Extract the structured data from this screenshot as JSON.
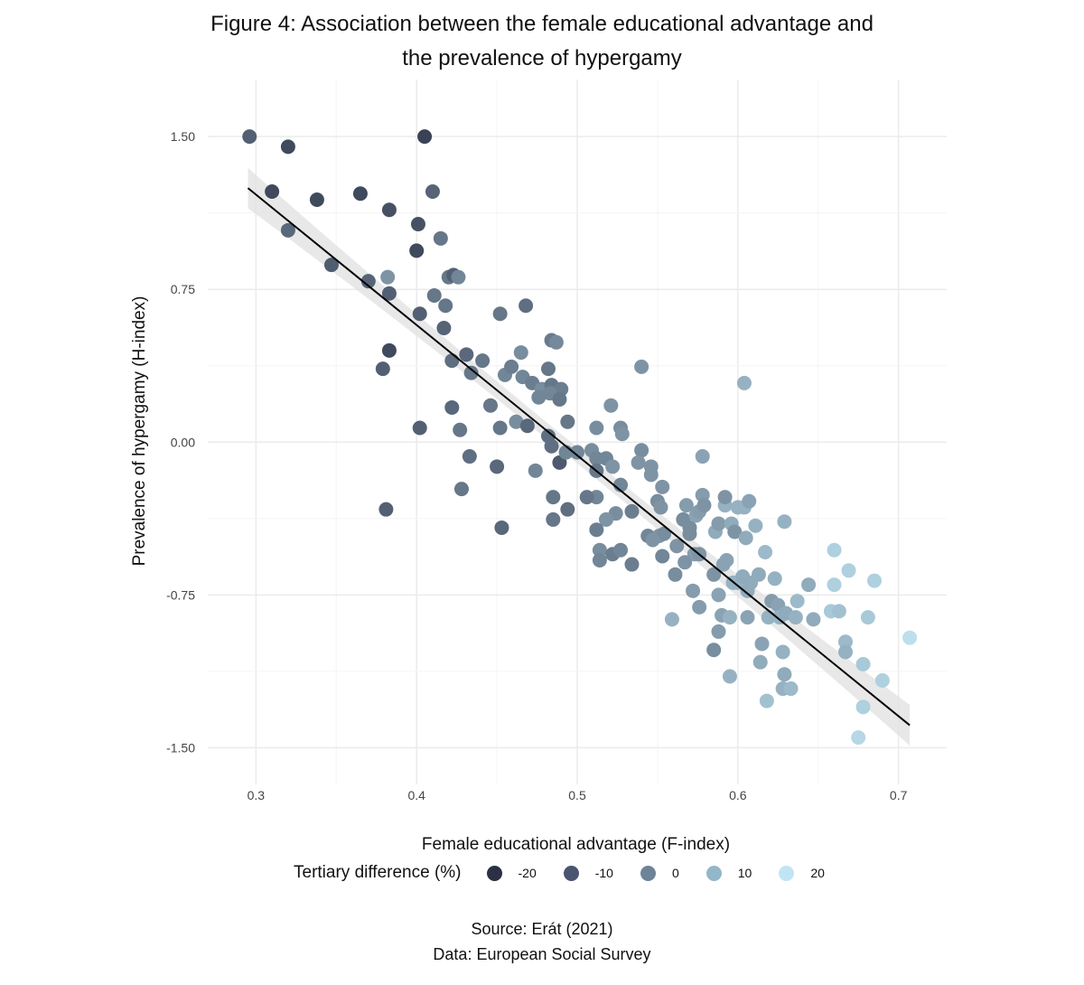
{
  "title_lines": [
    "Figure 4: Association between the female educational advantage and",
    "the prevalence of hypergamy"
  ],
  "caption": {
    "source": "Source: Erát (2021)",
    "data": "Data: European Social Survey"
  },
  "chart_data": {
    "type": "scatter",
    "xlabel": "Female educational advantage (F-index)",
    "ylabel": "Prevalence of hypergamy (H-index)",
    "xlim": [
      0.27,
      0.73
    ],
    "ylim": [
      -1.68,
      1.78
    ],
    "x_ticks": [
      0.3,
      0.4,
      0.5,
      0.6,
      0.7
    ],
    "x_tick_labels": [
      "0.3",
      "0.4",
      "0.5",
      "0.6",
      "0.7"
    ],
    "y_ticks": [
      1.5,
      0.75,
      0.0,
      -0.75,
      -1.5
    ],
    "y_tick_labels": [
      "1.50",
      "0.75",
      "0.00",
      "-0.75",
      "-1.50"
    ],
    "grid": true,
    "legend": {
      "title": "Tertiary difference (%)",
      "position": "bottom",
      "items": [
        {
          "label": "-20",
          "color": "#2b3044"
        },
        {
          "label": "-10",
          "color": "#4a556f"
        },
        {
          "label": "0",
          "color": "#6e8398"
        },
        {
          "label": "10",
          "color": "#94b6c9"
        },
        {
          "label": "20",
          "color": "#bfe5f5"
        }
      ]
    },
    "color_scale": {
      "min": -25,
      "max": 25,
      "low": "#2b3044",
      "high": "#c4eaf8"
    },
    "fit": {
      "method": "linear",
      "slope": -6.4,
      "intercept": 3.135,
      "x_range": [
        0.295,
        0.707
      ],
      "ci_halfwidth_end": 0.1,
      "ci_halfwidth_center": 0.04,
      "x_center": 0.5,
      "line_color": "#000000",
      "band_color": "#e0e0e0"
    },
    "points": [
      {
        "x": 0.296,
        "y": 1.5,
        "t": -12
      },
      {
        "x": 0.32,
        "y": 1.45,
        "t": -18
      },
      {
        "x": 0.405,
        "y": 1.5,
        "t": -20
      },
      {
        "x": 0.31,
        "y": 1.23,
        "t": -18
      },
      {
        "x": 0.338,
        "y": 1.19,
        "t": -18
      },
      {
        "x": 0.365,
        "y": 1.22,
        "t": -18
      },
      {
        "x": 0.41,
        "y": 1.23,
        "t": -11
      },
      {
        "x": 0.383,
        "y": 1.14,
        "t": -16
      },
      {
        "x": 0.32,
        "y": 1.04,
        "t": -10
      },
      {
        "x": 0.401,
        "y": 1.07,
        "t": -16
      },
      {
        "x": 0.4,
        "y": 0.94,
        "t": -18
      },
      {
        "x": 0.415,
        "y": 1.0,
        "t": -6
      },
      {
        "x": 0.347,
        "y": 0.87,
        "t": -13
      },
      {
        "x": 0.37,
        "y": 0.79,
        "t": -11
      },
      {
        "x": 0.382,
        "y": 0.81,
        "t": 2
      },
      {
        "x": 0.383,
        "y": 0.73,
        "t": -12
      },
      {
        "x": 0.42,
        "y": 0.81,
        "t": -6
      },
      {
        "x": 0.423,
        "y": 0.82,
        "t": -12
      },
      {
        "x": 0.426,
        "y": 0.81,
        "t": -2
      },
      {
        "x": 0.411,
        "y": 0.72,
        "t": -6
      },
      {
        "x": 0.418,
        "y": 0.67,
        "t": -6
      },
      {
        "x": 0.402,
        "y": 0.63,
        "t": -12
      },
      {
        "x": 0.417,
        "y": 0.56,
        "t": -11
      },
      {
        "x": 0.452,
        "y": 0.63,
        "t": -6
      },
      {
        "x": 0.468,
        "y": 0.67,
        "t": -8
      },
      {
        "x": 0.383,
        "y": 0.45,
        "t": -18
      },
      {
        "x": 0.379,
        "y": 0.36,
        "t": -12
      },
      {
        "x": 0.422,
        "y": 0.4,
        "t": -8
      },
      {
        "x": 0.431,
        "y": 0.43,
        "t": -10
      },
      {
        "x": 0.441,
        "y": 0.4,
        "t": -6
      },
      {
        "x": 0.434,
        "y": 0.34,
        "t": -6
      },
      {
        "x": 0.455,
        "y": 0.33,
        "t": -2
      },
      {
        "x": 0.459,
        "y": 0.37,
        "t": -4
      },
      {
        "x": 0.465,
        "y": 0.44,
        "t": 0
      },
      {
        "x": 0.482,
        "y": 0.36,
        "t": -6
      },
      {
        "x": 0.484,
        "y": 0.5,
        "t": -5
      },
      {
        "x": 0.487,
        "y": 0.49,
        "t": -1
      },
      {
        "x": 0.466,
        "y": 0.32,
        "t": -2
      },
      {
        "x": 0.472,
        "y": 0.29,
        "t": -4
      },
      {
        "x": 0.478,
        "y": 0.26,
        "t": 0
      },
      {
        "x": 0.484,
        "y": 0.28,
        "t": -6
      },
      {
        "x": 0.49,
        "y": 0.26,
        "t": -4
      },
      {
        "x": 0.476,
        "y": 0.22,
        "t": -2
      },
      {
        "x": 0.483,
        "y": 0.24,
        "t": -2
      },
      {
        "x": 0.489,
        "y": 0.21,
        "t": -6
      },
      {
        "x": 0.422,
        "y": 0.17,
        "t": -10
      },
      {
        "x": 0.446,
        "y": 0.18,
        "t": -6
      },
      {
        "x": 0.462,
        "y": 0.1,
        "t": 0
      },
      {
        "x": 0.469,
        "y": 0.08,
        "t": -10
      },
      {
        "x": 0.452,
        "y": 0.07,
        "t": -6
      },
      {
        "x": 0.402,
        "y": 0.07,
        "t": -12
      },
      {
        "x": 0.427,
        "y": 0.06,
        "t": -6
      },
      {
        "x": 0.54,
        "y": 0.37,
        "t": 2
      },
      {
        "x": 0.604,
        "y": 0.29,
        "t": 10
      },
      {
        "x": 0.494,
        "y": 0.1,
        "t": -6
      },
      {
        "x": 0.482,
        "y": 0.03,
        "t": -8
      },
      {
        "x": 0.484,
        "y": -0.02,
        "t": -8
      },
      {
        "x": 0.489,
        "y": -0.1,
        "t": -14
      },
      {
        "x": 0.493,
        "y": -0.05,
        "t": -2
      },
      {
        "x": 0.5,
        "y": -0.05,
        "t": -2
      },
      {
        "x": 0.509,
        "y": -0.04,
        "t": 0
      },
      {
        "x": 0.512,
        "y": -0.08,
        "t": -2
      },
      {
        "x": 0.518,
        "y": -0.08,
        "t": -2
      },
      {
        "x": 0.522,
        "y": -0.12,
        "t": 2
      },
      {
        "x": 0.512,
        "y": 0.07,
        "t": 0
      },
      {
        "x": 0.521,
        "y": 0.18,
        "t": 2
      },
      {
        "x": 0.527,
        "y": 0.07,
        "t": 0
      },
      {
        "x": 0.528,
        "y": 0.04,
        "t": 2
      },
      {
        "x": 0.54,
        "y": -0.04,
        "t": 0
      },
      {
        "x": 0.538,
        "y": -0.1,
        "t": 2
      },
      {
        "x": 0.546,
        "y": -0.12,
        "t": 2
      },
      {
        "x": 0.433,
        "y": -0.07,
        "t": -8
      },
      {
        "x": 0.45,
        "y": -0.12,
        "t": -10
      },
      {
        "x": 0.474,
        "y": -0.14,
        "t": -2
      },
      {
        "x": 0.428,
        "y": -0.23,
        "t": -6
      },
      {
        "x": 0.485,
        "y": -0.27,
        "t": -6
      },
      {
        "x": 0.494,
        "y": -0.33,
        "t": -8
      },
      {
        "x": 0.485,
        "y": -0.38,
        "t": -6
      },
      {
        "x": 0.381,
        "y": -0.33,
        "t": -12
      },
      {
        "x": 0.453,
        "y": -0.42,
        "t": -10
      },
      {
        "x": 0.512,
        "y": -0.14,
        "t": -6
      },
      {
        "x": 0.512,
        "y": -0.27,
        "t": -2
      },
      {
        "x": 0.506,
        "y": -0.27,
        "t": -6
      },
      {
        "x": 0.527,
        "y": -0.21,
        "t": -2
      },
      {
        "x": 0.524,
        "y": -0.35,
        "t": 0
      },
      {
        "x": 0.518,
        "y": -0.38,
        "t": 2
      },
      {
        "x": 0.512,
        "y": -0.43,
        "t": -4
      },
      {
        "x": 0.534,
        "y": -0.34,
        "t": -4
      },
      {
        "x": 0.546,
        "y": -0.16,
        "t": 2
      },
      {
        "x": 0.553,
        "y": -0.22,
        "t": 2
      },
      {
        "x": 0.55,
        "y": -0.29,
        "t": 0
      },
      {
        "x": 0.552,
        "y": -0.32,
        "t": 2
      },
      {
        "x": 0.544,
        "y": -0.46,
        "t": -2
      },
      {
        "x": 0.551,
        "y": -0.46,
        "t": 2
      },
      {
        "x": 0.554,
        "y": -0.45,
        "t": 0
      },
      {
        "x": 0.547,
        "y": -0.48,
        "t": 2
      },
      {
        "x": 0.514,
        "y": -0.53,
        "t": 0
      },
      {
        "x": 0.522,
        "y": -0.55,
        "t": -4
      },
      {
        "x": 0.527,
        "y": -0.53,
        "t": -2
      },
      {
        "x": 0.514,
        "y": -0.58,
        "t": -2
      },
      {
        "x": 0.534,
        "y": -0.6,
        "t": -4
      },
      {
        "x": 0.553,
        "y": -0.56,
        "t": -2
      },
      {
        "x": 0.562,
        "y": -0.51,
        "t": 2
      },
      {
        "x": 0.566,
        "y": -0.38,
        "t": 0
      },
      {
        "x": 0.57,
        "y": -0.42,
        "t": 0
      },
      {
        "x": 0.568,
        "y": -0.31,
        "t": 4
      },
      {
        "x": 0.574,
        "y": -0.36,
        "t": 6
      },
      {
        "x": 0.576,
        "y": -0.34,
        "t": 4
      },
      {
        "x": 0.578,
        "y": -0.26,
        "t": 4
      },
      {
        "x": 0.579,
        "y": -0.31,
        "t": 2
      },
      {
        "x": 0.586,
        "y": -0.44,
        "t": 8
      },
      {
        "x": 0.588,
        "y": -0.4,
        "t": 4
      },
      {
        "x": 0.592,
        "y": -0.31,
        "t": 10
      },
      {
        "x": 0.592,
        "y": -0.27,
        "t": 2
      },
      {
        "x": 0.596,
        "y": -0.4,
        "t": 8
      },
      {
        "x": 0.598,
        "y": -0.44,
        "t": 2
      },
      {
        "x": 0.6,
        "y": -0.32,
        "t": 10
      },
      {
        "x": 0.604,
        "y": -0.32,
        "t": 10
      },
      {
        "x": 0.607,
        "y": -0.29,
        "t": 6
      },
      {
        "x": 0.605,
        "y": -0.47,
        "t": 8
      },
      {
        "x": 0.611,
        "y": -0.41,
        "t": 10
      },
      {
        "x": 0.578,
        "y": -0.07,
        "t": 6
      },
      {
        "x": 0.629,
        "y": -0.39,
        "t": 10
      },
      {
        "x": 0.617,
        "y": -0.54,
        "t": 12
      },
      {
        "x": 0.57,
        "y": -0.45,
        "t": 0
      },
      {
        "x": 0.573,
        "y": -0.55,
        "t": 4
      },
      {
        "x": 0.576,
        "y": -0.55,
        "t": 2
      },
      {
        "x": 0.567,
        "y": -0.59,
        "t": 2
      },
      {
        "x": 0.561,
        "y": -0.65,
        "t": 0
      },
      {
        "x": 0.585,
        "y": -0.65,
        "t": 2
      },
      {
        "x": 0.591,
        "y": -0.6,
        "t": 6
      },
      {
        "x": 0.593,
        "y": -0.58,
        "t": 6
      },
      {
        "x": 0.597,
        "y": -0.69,
        "t": 10
      },
      {
        "x": 0.6,
        "y": -0.69,
        "t": 10
      },
      {
        "x": 0.603,
        "y": -0.66,
        "t": 8
      },
      {
        "x": 0.606,
        "y": -0.73,
        "t": 8
      },
      {
        "x": 0.608,
        "y": -0.69,
        "t": 8
      },
      {
        "x": 0.613,
        "y": -0.65,
        "t": 8
      },
      {
        "x": 0.623,
        "y": -0.67,
        "t": 10
      },
      {
        "x": 0.572,
        "y": -0.73,
        "t": 4
      },
      {
        "x": 0.576,
        "y": -0.81,
        "t": 4
      },
      {
        "x": 0.588,
        "y": -0.75,
        "t": 6
      },
      {
        "x": 0.59,
        "y": -0.85,
        "t": 6
      },
      {
        "x": 0.595,
        "y": -0.86,
        "t": 10
      },
      {
        "x": 0.606,
        "y": -0.86,
        "t": 6
      },
      {
        "x": 0.559,
        "y": -0.87,
        "t": 10
      },
      {
        "x": 0.588,
        "y": -0.93,
        "t": 4
      },
      {
        "x": 0.585,
        "y": -1.02,
        "t": 0
      },
      {
        "x": 0.595,
        "y": -1.15,
        "t": 10
      },
      {
        "x": 0.621,
        "y": -0.78,
        "t": 4
      },
      {
        "x": 0.625,
        "y": -0.8,
        "t": 6
      },
      {
        "x": 0.619,
        "y": -0.86,
        "t": 10
      },
      {
        "x": 0.626,
        "y": -0.86,
        "t": 10
      },
      {
        "x": 0.63,
        "y": -0.84,
        "t": 8
      },
      {
        "x": 0.637,
        "y": -0.78,
        "t": 12
      },
      {
        "x": 0.636,
        "y": -0.86,
        "t": 10
      },
      {
        "x": 0.644,
        "y": -0.7,
        "t": 8
      },
      {
        "x": 0.647,
        "y": -0.87,
        "t": 8
      },
      {
        "x": 0.615,
        "y": -0.99,
        "t": 6
      },
      {
        "x": 0.614,
        "y": -1.08,
        "t": 8
      },
      {
        "x": 0.628,
        "y": -1.03,
        "t": 10
      },
      {
        "x": 0.629,
        "y": -1.14,
        "t": 8
      },
      {
        "x": 0.628,
        "y": -1.21,
        "t": 10
      },
      {
        "x": 0.633,
        "y": -1.21,
        "t": 12
      },
      {
        "x": 0.618,
        "y": -1.27,
        "t": 14
      },
      {
        "x": 0.66,
        "y": -0.53,
        "t": 18
      },
      {
        "x": 0.669,
        "y": -0.63,
        "t": 18
      },
      {
        "x": 0.66,
        "y": -0.7,
        "t": 18
      },
      {
        "x": 0.658,
        "y": -0.83,
        "t": 16
      },
      {
        "x": 0.663,
        "y": -0.83,
        "t": 14
      },
      {
        "x": 0.685,
        "y": -0.68,
        "t": 18
      },
      {
        "x": 0.681,
        "y": -0.86,
        "t": 16
      },
      {
        "x": 0.667,
        "y": -0.98,
        "t": 12
      },
      {
        "x": 0.667,
        "y": -1.03,
        "t": 10
      },
      {
        "x": 0.678,
        "y": -1.09,
        "t": 16
      },
      {
        "x": 0.69,
        "y": -1.17,
        "t": 18
      },
      {
        "x": 0.678,
        "y": -1.3,
        "t": 18
      },
      {
        "x": 0.675,
        "y": -1.45,
        "t": 20
      },
      {
        "x": 0.707,
        "y": -0.96,
        "t": 22
      }
    ]
  }
}
